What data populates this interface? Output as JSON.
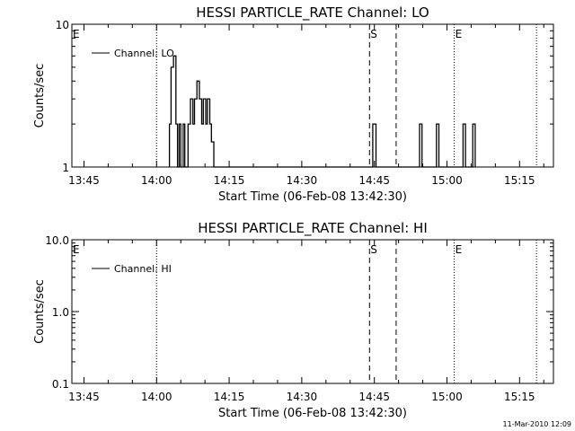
{
  "chart_data": [
    {
      "type": "line",
      "title": "HESSI PARTICLE_RATE Channel: LO",
      "xlabel": "Start Time (06-Feb-08 13:42:30)",
      "ylabel": "Counts/sec",
      "yscale": "log",
      "ylim": [
        1,
        10
      ],
      "y_tick_labels": [
        "1",
        "10"
      ],
      "xlim": [
        "13:42:30",
        "15:22:00"
      ],
      "x_tick_labels": [
        "13:45",
        "14:00",
        "14:15",
        "14:30",
        "14:45",
        "15:00",
        "15:15"
      ],
      "legend": {
        "label": "Channel: LO",
        "position": "top-left"
      },
      "markers": [
        {
          "label": "E",
          "time": "13:42:30",
          "style": "dotted"
        },
        {
          "label": "",
          "time": "14:00:00",
          "style": "dotted"
        },
        {
          "label": "S",
          "time": "14:44:00",
          "style": "dashed"
        },
        {
          "label": "",
          "time": "14:49:30",
          "style": "dashed"
        },
        {
          "label": "E",
          "time": "15:01:30",
          "style": "dotted"
        },
        {
          "label": "",
          "time": "15:18:30",
          "style": "dotted"
        }
      ],
      "series": [
        {
          "name": "Channel: LO",
          "points": [
            [
              "14:02:40",
              1
            ],
            [
              "14:02:40",
              2
            ],
            [
              "14:03:00",
              2
            ],
            [
              "14:03:00",
              5
            ],
            [
              "14:03:30",
              5
            ],
            [
              "14:03:30",
              6
            ],
            [
              "14:04:00",
              6
            ],
            [
              "14:04:00",
              2
            ],
            [
              "14:04:20",
              2
            ],
            [
              "14:04:20",
              1
            ],
            [
              "14:04:40",
              1
            ],
            [
              "14:04:40",
              2
            ],
            [
              "14:05:00",
              2
            ],
            [
              "14:05:00",
              1
            ],
            [
              "14:05:30",
              1
            ],
            [
              "14:05:30",
              2
            ],
            [
              "14:05:50",
              2
            ],
            [
              "14:05:50",
              1
            ],
            [
              "14:06:30",
              1
            ],
            [
              "14:06:30",
              2
            ],
            [
              "14:07:00",
              2
            ],
            [
              "14:07:00",
              3
            ],
            [
              "14:07:30",
              3
            ],
            [
              "14:07:30",
              2
            ],
            [
              "14:07:50",
              2
            ],
            [
              "14:07:50",
              3
            ],
            [
              "14:08:20",
              3
            ],
            [
              "14:08:20",
              4
            ],
            [
              "14:08:50",
              4
            ],
            [
              "14:08:50",
              3
            ],
            [
              "14:09:20",
              3
            ],
            [
              "14:09:20",
              2
            ],
            [
              "14:09:40",
              2
            ],
            [
              "14:09:40",
              3
            ],
            [
              "14:10:10",
              3
            ],
            [
              "14:10:10",
              2
            ],
            [
              "14:10:30",
              2
            ],
            [
              "14:10:30",
              3
            ],
            [
              "14:11:00",
              3
            ],
            [
              "14:11:00",
              2
            ],
            [
              "14:11:20",
              2
            ],
            [
              "14:11:20",
              1.5
            ],
            [
              "14:11:50",
              1.5
            ],
            [
              "14:11:50",
              1
            ],
            [
              "14:44:40",
              1
            ],
            [
              "14:44:40",
              2
            ],
            [
              "14:45:20",
              2
            ],
            [
              "14:45:20",
              1
            ],
            [
              "14:54:20",
              1
            ],
            [
              "14:54:20",
              2
            ],
            [
              "14:54:50",
              2
            ],
            [
              "14:54:50",
              1
            ],
            [
              "14:57:50",
              1
            ],
            [
              "14:57:50",
              2
            ],
            [
              "14:58:20",
              2
            ],
            [
              "14:58:20",
              1
            ],
            [
              "15:03:20",
              1
            ],
            [
              "15:03:20",
              2
            ],
            [
              "15:03:50",
              2
            ],
            [
              "15:03:50",
              1
            ],
            [
              "15:05:20",
              1
            ],
            [
              "15:05:20",
              2
            ],
            [
              "15:05:50",
              2
            ],
            [
              "15:05:50",
              1
            ]
          ]
        }
      ]
    },
    {
      "type": "line",
      "title": "HESSI PARTICLE_RATE Channel: HI",
      "xlabel": "Start Time (06-Feb-08 13:42:30)",
      "ylabel": "Counts/sec",
      "yscale": "log",
      "ylim": [
        0.1,
        10
      ],
      "y_tick_labels": [
        "0.1",
        "1.0",
        "10.0"
      ],
      "xlim": [
        "13:42:30",
        "15:22:00"
      ],
      "x_tick_labels": [
        "13:45",
        "14:00",
        "14:15",
        "14:30",
        "14:45",
        "15:00",
        "15:15"
      ],
      "legend": {
        "label": "Channel: HI",
        "position": "top-left"
      },
      "markers": [
        {
          "label": "E",
          "time": "13:42:30",
          "style": "dotted"
        },
        {
          "label": "",
          "time": "14:00:00",
          "style": "dotted"
        },
        {
          "label": "S",
          "time": "14:44:00",
          "style": "dashed"
        },
        {
          "label": "",
          "time": "14:49:30",
          "style": "dashed"
        },
        {
          "label": "E",
          "time": "15:01:30",
          "style": "dotted"
        },
        {
          "label": "",
          "time": "15:18:30",
          "style": "dotted"
        }
      ],
      "series": [
        {
          "name": "Channel: HI",
          "points": []
        }
      ]
    }
  ],
  "timestamp": "11-Mar-2010 12:09"
}
